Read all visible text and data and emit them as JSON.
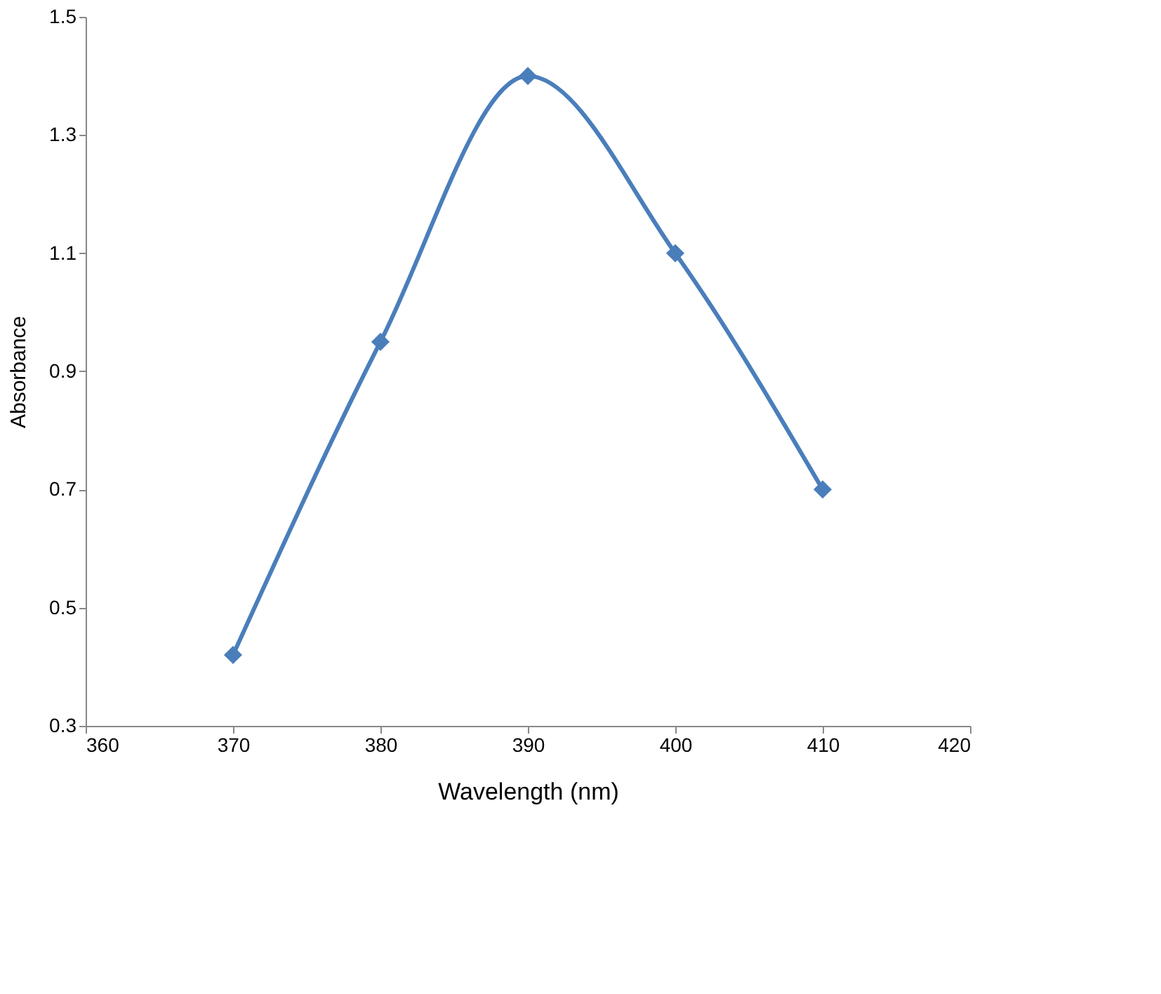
{
  "chart_data": {
    "type": "line",
    "xlabel": "Wavelength (nm)",
    "ylabel": "Absorbance",
    "x": [
      370,
      380,
      390,
      400,
      410
    ],
    "series": [
      {
        "color": "#4a7ebb",
        "values": [
          0.42,
          0.95,
          1.4,
          1.1,
          0.7
        ]
      }
    ],
    "xlim": [
      360,
      420
    ],
    "xticks": [
      360,
      370,
      380,
      390,
      400,
      410,
      420
    ],
    "ylim": [
      0.3,
      1.5
    ],
    "yticks": [
      0.3,
      0.5,
      0.7,
      0.9,
      1.1,
      1.3,
      1.5
    ],
    "grid": false,
    "marker": "diamond",
    "line_style": "solid"
  }
}
